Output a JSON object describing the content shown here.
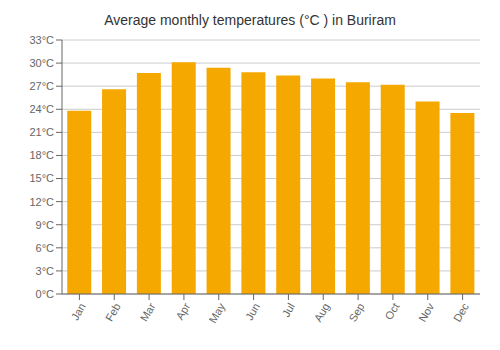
{
  "chart_data": {
    "type": "bar",
    "title": "Average monthly temperatures (°C ) in Buriram",
    "categories": [
      "Jan",
      "Feb",
      "Mar",
      "Apr",
      "May",
      "Jun",
      "Jul",
      "Aug",
      "Sep",
      "Oct",
      "Nov",
      "Dec"
    ],
    "values": [
      23.8,
      26.6,
      28.7,
      30.1,
      29.4,
      28.8,
      28.4,
      28.0,
      27.5,
      27.2,
      25.0,
      23.5
    ],
    "color": "#F5A800",
    "ylim": [
      0,
      33
    ],
    "yticks": [
      {
        "value": 0,
        "label": "0°C"
      },
      {
        "value": 3,
        "label": "3°C"
      },
      {
        "value": 6,
        "label": "6°C"
      },
      {
        "value": 9,
        "label": "9°C"
      },
      {
        "value": 12,
        "label": "12°C"
      },
      {
        "value": 15,
        "label": "15°C"
      },
      {
        "value": 18,
        "label": "18°C"
      },
      {
        "value": 21,
        "label": "21°C"
      },
      {
        "value": 24,
        "label": "24°C"
      },
      {
        "value": 27,
        "label": "27°C"
      },
      {
        "value": 30,
        "label": "30°C"
      },
      {
        "value": 33,
        "label": "33°C"
      }
    ],
    "grid": true
  }
}
